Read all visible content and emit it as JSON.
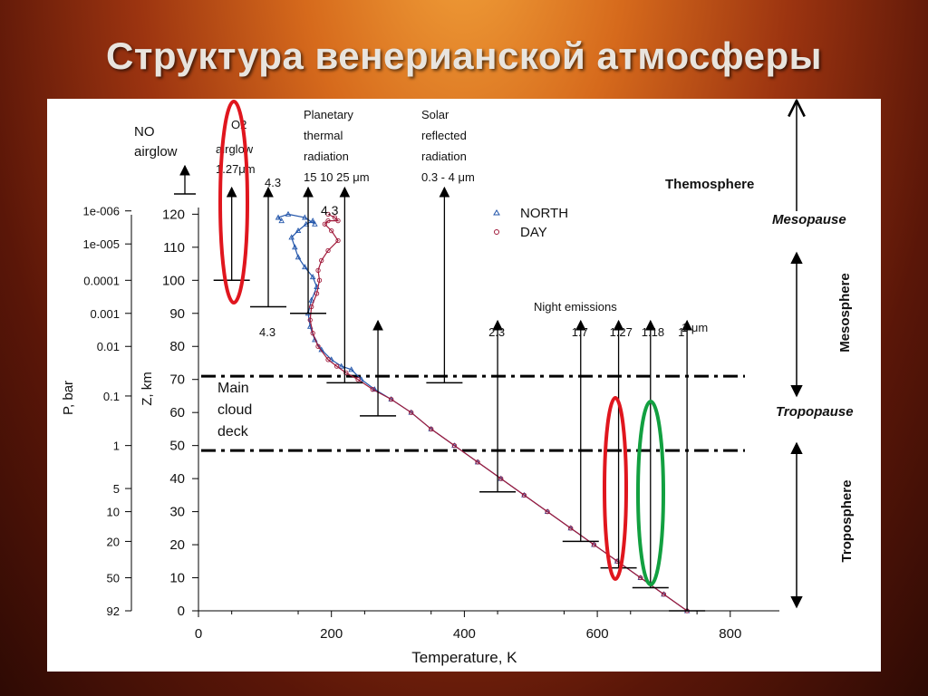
{
  "page": {
    "title": "Структура венерианской атмосферы"
  },
  "chart_data": {
    "type": "line",
    "xlabel": "Temperature, K",
    "ylabel": "Z, km",
    "p_label": "P, bar",
    "xlim": [
      0,
      800
    ],
    "ylim": [
      0,
      120
    ],
    "x_ticks": [
      0,
      200,
      400,
      600,
      800
    ],
    "y_ticks": [
      0,
      10,
      20,
      30,
      40,
      50,
      60,
      70,
      80,
      90,
      100,
      110,
      120
    ],
    "p_ticks": [
      {
        "label": "92",
        "z": 0
      },
      {
        "label": "50",
        "z": 10
      },
      {
        "label": "20",
        "z": 21
      },
      {
        "label": "10",
        "z": 30
      },
      {
        "label": "5",
        "z": 37
      },
      {
        "label": "1",
        "z": 50
      },
      {
        "label": "0.1",
        "z": 65
      },
      {
        "label": "0.01",
        "z": 80
      },
      {
        "label": "0.001",
        "z": 90
      },
      {
        "label": "0.0001",
        "z": 100
      },
      {
        "label": "1e-005",
        "z": 111
      },
      {
        "label": "1e-006",
        "z": 121
      }
    ],
    "legend": [
      {
        "name": "NORTH",
        "marker": "triangle",
        "color": "#2255aa"
      },
      {
        "name": "DAY",
        "marker": "circle",
        "color": "#a01a3a"
      }
    ],
    "legend_position": "top-center",
    "series": [
      {
        "name": "NORTH",
        "x": [
          735,
          700,
          665,
          630,
          595,
          560,
          525,
          490,
          455,
          420,
          385,
          350,
          320,
          290,
          265,
          245,
          230,
          215,
          200,
          185,
          175,
          168,
          165,
          170,
          178,
          172,
          160,
          150,
          145,
          140,
          150,
          162,
          172,
          175,
          160,
          135,
          120,
          125
        ],
        "y": [
          0,
          5,
          10,
          15,
          20,
          25,
          30,
          35,
          40,
          45,
          50,
          55,
          60,
          64,
          67,
          70,
          73,
          74,
          76,
          79,
          82,
          86,
          90,
          94,
          98,
          101,
          104,
          107,
          110,
          113,
          115,
          117,
          118,
          117,
          119,
          120,
          119,
          118
        ]
      },
      {
        "name": "DAY",
        "x": [
          735,
          700,
          665,
          630,
          595,
          560,
          525,
          490,
          455,
          420,
          385,
          350,
          320,
          290,
          262,
          240,
          222,
          208,
          195,
          180,
          172,
          168,
          170,
          178,
          182,
          180,
          185,
          195,
          210,
          200,
          190,
          195,
          210,
          205,
          195
        ],
        "y": [
          0,
          5,
          10,
          15,
          20,
          25,
          30,
          35,
          40,
          45,
          50,
          55,
          60,
          64,
          67,
          70,
          72,
          74,
          76,
          80,
          84,
          88,
          92,
          96,
          100,
          103,
          106,
          109,
          112,
          115,
          117,
          118,
          118,
          119,
          120
        ]
      }
    ],
    "cloud_deck_lines_z": [
      71,
      48.5
    ],
    "cloud_deck_label": [
      "Main",
      "cloud",
      "deck"
    ],
    "emission_arrows": [
      {
        "x": 50,
        "z_from": 100,
        "label": ""
      },
      {
        "x": 105,
        "z_from": 92,
        "label": "4.3"
      },
      {
        "x": 165,
        "z_from": 90,
        "label": ""
      },
      {
        "x": 220,
        "z_from": 69,
        "label": ""
      },
      {
        "x": 270,
        "z_from": 59,
        "label": ""
      },
      {
        "x": 370,
        "z_from": 69,
        "label": ""
      },
      {
        "x": 450,
        "z_from": 36,
        "label": "2.3"
      },
      {
        "x": 575,
        "z_from": 21,
        "label": "1.7"
      },
      {
        "x": 632,
        "z_from": 13,
        "label": "1.27"
      },
      {
        "x": 680,
        "z_from": 7,
        "label": "1.18"
      },
      {
        "x": 735,
        "z_from": 0,
        "label": "1"
      }
    ],
    "annotations": {
      "no_airglow": [
        "NO",
        "airglow"
      ],
      "o2_airglow": [
        "O2",
        "airglow",
        "1.27μm"
      ],
      "planetary": [
        "Planetary",
        "thermal",
        "radiation",
        "15   10    25 μm"
      ],
      "solar": [
        "Solar",
        "reflected",
        "radiation",
        "0.3 - 4 μm"
      ],
      "co2_label": "4.3",
      "night_emissions": "Night  emissions",
      "one_um": "1 μm"
    },
    "layers": {
      "thermosphere": "Themosphere",
      "mesopause": "Mesopause",
      "mesosphere": "Mesosphere",
      "tropopause": "Tropopause",
      "troposphere": "Troposphere"
    },
    "highlight_colors": {
      "red": "#e0161e",
      "green": "#12a040"
    }
  }
}
